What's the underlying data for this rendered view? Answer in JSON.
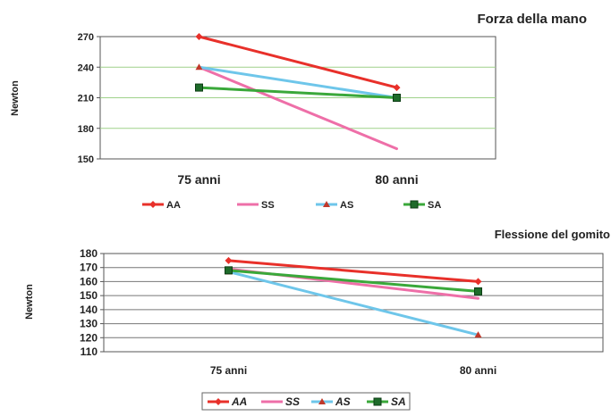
{
  "chart_data": [
    {
      "type": "line",
      "title": "Forza della mano",
      "ylabel": "Newton",
      "xlabel": "",
      "categories": [
        "75 anni",
        "80 anni"
      ],
      "ylim": [
        150,
        270
      ],
      "yticks": [
        "150",
        "180",
        "210",
        "240",
        "270"
      ],
      "grid": true,
      "legend_position": "bottom",
      "series": [
        {
          "name": "AA",
          "values": [
            270,
            220
          ],
          "color": "#e8302a",
          "marker": "diamond"
        },
        {
          "name": "SS",
          "values": [
            240,
            160
          ],
          "color": "#ee6fa8",
          "marker": "none"
        },
        {
          "name": "AS",
          "values": [
            240,
            210
          ],
          "color": "#6ec6ea",
          "marker": "triangle"
        },
        {
          "name": "SA",
          "values": [
            220,
            210
          ],
          "color": "#3aa83a",
          "marker": "square"
        }
      ]
    },
    {
      "type": "line",
      "title": "Flessione del gomito",
      "ylabel": "Newton",
      "xlabel": "",
      "categories": [
        "75 anni",
        "80 anni"
      ],
      "ylim": [
        110,
        180
      ],
      "yticks": [
        "110",
        "120",
        "130",
        "140",
        "150",
        "160",
        "170",
        "180"
      ],
      "grid": true,
      "legend_position": "bottom",
      "series": [
        {
          "name": "AA",
          "values": [
            175,
            160
          ],
          "color": "#e8302a",
          "marker": "diamond"
        },
        {
          "name": "SS",
          "values": [
            169,
            148
          ],
          "color": "#ee6fa8",
          "marker": "none"
        },
        {
          "name": "AS",
          "values": [
            167,
            122
          ],
          "color": "#6ec6ea",
          "marker": "triangle"
        },
        {
          "name": "SA",
          "values": [
            168,
            153
          ],
          "color": "#3aa83a",
          "marker": "square"
        }
      ]
    }
  ]
}
